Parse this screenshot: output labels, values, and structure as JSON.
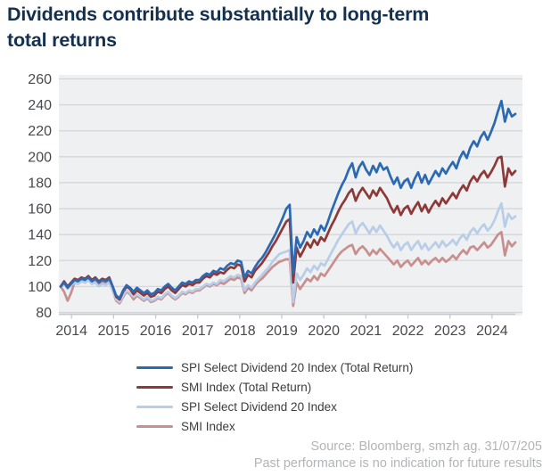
{
  "title": {
    "lines": [
      "Dividends contribute substantially to long-term",
      "total returns"
    ]
  },
  "source": {
    "line1": "Source: Bloomberg, smzh ag. 31/07/205",
    "line2": "Past performance is no indication for future results"
  },
  "legend": [
    {
      "label": "SPI Select Dividend 20 Index (Total Return)"
    },
    {
      "label": "SMI Index (Total Return)"
    },
    {
      "label": "SPI Select Dividend 20 Index"
    },
    {
      "label": "SMI Index"
    }
  ],
  "colors": {
    "title": "#14304f",
    "plot_bg": "#eef0f2",
    "gridline": "#d4d6d9",
    "axis_line": "#c5c8cc",
    "tick_text": "#46494e",
    "source_text": "#b2b4b8"
  },
  "chart_data": {
    "type": "line",
    "title": "Dividends contribute substantially to long-term total returns",
    "xlabel": "",
    "ylabel": "",
    "ylim": [
      80,
      260
    ],
    "grid": true,
    "legend_position": "bottom",
    "x_axis": {
      "labels": [
        "2014",
        "2015",
        "2016",
        "2017",
        "2018",
        "2019",
        "2020",
        "2021",
        "2022",
        "2023",
        "2024"
      ]
    },
    "y_axis": {
      "min": 80,
      "max": 260,
      "step": 20,
      "ticks": [
        80,
        100,
        120,
        140,
        160,
        180,
        200,
        220,
        240,
        260
      ]
    },
    "x_unit": "months, Jan 2014 – mid 2024, indexed to 100",
    "series": [
      {
        "name": "SPI Select Dividend 20 Index (Total Return)",
        "color": "#2c69b3",
        "values": [
          100,
          103,
          99,
          102,
          105,
          104,
          106,
          105,
          107,
          104,
          106,
          103,
          105,
          104,
          106,
          100,
          93,
          91,
          97,
          101,
          99,
          96,
          99,
          97,
          95,
          97,
          94,
          95,
          98,
          97,
          100,
          102,
          99,
          97,
          100,
          103,
          102,
          104,
          103,
          105,
          105,
          108,
          110,
          109,
          112,
          111,
          114,
          113,
          116,
          118,
          117,
          120,
          119,
          107,
          112,
          110,
          115,
          119,
          122,
          126,
          131,
          136,
          141,
          147,
          153,
          160,
          163,
          110,
          138,
          130,
          135,
          142,
          138,
          144,
          140,
          147,
          143,
          150,
          158,
          165,
          172,
          178,
          183,
          190,
          195,
          184,
          192,
          196,
          190,
          186,
          193,
          188,
          195,
          190,
          192,
          185,
          179,
          184,
          176,
          181,
          183,
          176,
          183,
          188,
          180,
          186,
          179,
          184,
          189,
          185,
          191,
          187,
          192,
          196,
          191,
          199,
          204,
          199,
          207,
          212,
          208,
          215,
          219,
          213,
          219,
          226,
          235,
          243,
          227,
          237,
          231,
          233
        ]
      },
      {
        "name": "SMI Index (Total Return)",
        "color": "#8e3937",
        "values": [
          100,
          104,
          100,
          103,
          106,
          105,
          107,
          106,
          108,
          105,
          107,
          104,
          106,
          105,
          107,
          100,
          92,
          90,
          96,
          100,
          98,
          94,
          97,
          95,
          93,
          95,
          92,
          93,
          96,
          95,
          98,
          100,
          97,
          95,
          98,
          101,
          100,
          102,
          101,
          103,
          103,
          106,
          108,
          107,
          110,
          109,
          111,
          110,
          113,
          115,
          114,
          117,
          116,
          104,
          109,
          107,
          112,
          115,
          118,
          122,
          126,
          131,
          135,
          140,
          145,
          150,
          152,
          103,
          130,
          123,
          128,
          134,
          130,
          136,
          132,
          138,
          135,
          141,
          147,
          152,
          158,
          163,
          167,
          172,
          175,
          166,
          172,
          176,
          172,
          168,
          174,
          170,
          176,
          172,
          168,
          162,
          157,
          162,
          155,
          160,
          162,
          156,
          161,
          165,
          158,
          163,
          157,
          162,
          166,
          162,
          168,
          164,
          168,
          172,
          168,
          174,
          178,
          174,
          181,
          185,
          181,
          186,
          189,
          184,
          188,
          193,
          199,
          200,
          177,
          191,
          186,
          189
        ]
      },
      {
        "name": "SPI Select Dividend 20 Index",
        "color": "#b8cde8",
        "values": [
          100,
          102,
          98,
          101,
          103,
          102,
          104,
          103,
          105,
          102,
          103,
          100,
          102,
          101,
          103,
          97,
          90,
          88,
          93,
          97,
          95,
          92,
          94,
          92,
          90,
          92,
          89,
          90,
          92,
          91,
          94,
          96,
          93,
          91,
          93,
          96,
          95,
          97,
          96,
          98,
          98,
          100,
          102,
          101,
          103,
          102,
          105,
          104,
          106,
          108,
          107,
          109,
          108,
          97,
          101,
          99,
          103,
          106,
          109,
          112,
          115,
          119,
          122,
          125,
          126,
          127,
          128,
          88,
          110,
          105,
          109,
          114,
          111,
          116,
          113,
          118,
          116,
          121,
          126,
          131,
          136,
          140,
          144,
          148,
          150,
          141,
          146,
          149,
          145,
          141,
          146,
          142,
          147,
          143,
          139,
          134,
          130,
          134,
          128,
          132,
          134,
          128,
          132,
          135,
          129,
          133,
          128,
          131,
          134,
          130,
          135,
          131,
          133,
          136,
          132,
          137,
          140,
          136,
          142,
          145,
          141,
          145,
          148,
          143,
          146,
          151,
          158,
          164,
          146,
          156,
          152,
          154
        ]
      },
      {
        "name": "SMI Index",
        "color": "#c98f8f",
        "values": [
          100,
          96,
          89,
          95,
          103,
          102,
          104,
          103,
          105,
          102,
          104,
          101,
          103,
          102,
          104,
          97,
          89,
          87,
          92,
          96,
          94,
          90,
          93,
          91,
          89,
          91,
          88,
          89,
          91,
          90,
          93,
          95,
          92,
          90,
          92,
          95,
          94,
          96,
          95,
          97,
          97,
          99,
          101,
          100,
          102,
          101,
          103,
          102,
          104,
          106,
          105,
          107,
          106,
          95,
          99,
          97,
          101,
          104,
          106,
          109,
          112,
          115,
          117,
          119,
          120,
          121,
          121,
          85,
          103,
          98,
          102,
          106,
          104,
          108,
          105,
          110,
          108,
          112,
          116,
          120,
          124,
          127,
          129,
          131,
          132,
          125,
          129,
          131,
          128,
          124,
          128,
          125,
          129,
          126,
          123,
          120,
          117,
          120,
          115,
          118,
          120,
          116,
          119,
          122,
          117,
          120,
          117,
          120,
          122,
          119,
          122,
          119,
          121,
          124,
          121,
          125,
          128,
          125,
          130,
          131,
          128,
          131,
          134,
          130,
          132,
          136,
          140,
          142,
          124,
          135,
          131,
          134
        ]
      }
    ]
  }
}
